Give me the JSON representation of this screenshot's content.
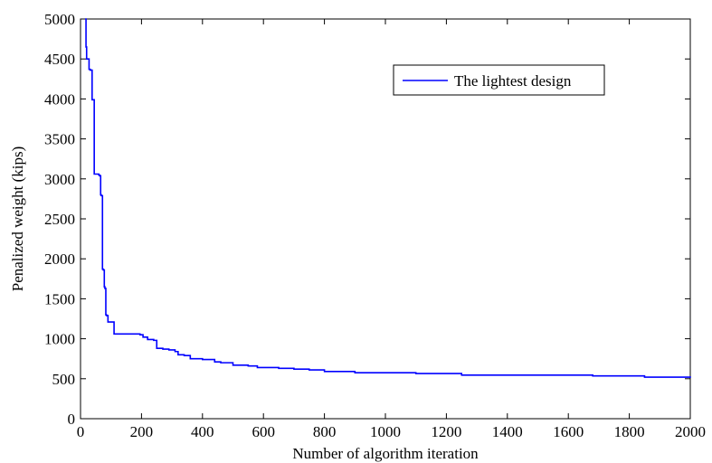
{
  "chart_data": {
    "type": "line",
    "xlabel": "Number of algorithm iteration",
    "ylabel": "Penalized weight (kips)",
    "xlim": [
      0,
      2000
    ],
    "ylim": [
      0,
      5000
    ],
    "xticks": [
      0,
      200,
      400,
      600,
      800,
      1000,
      1200,
      1400,
      1600,
      1800,
      2000
    ],
    "yticks": [
      0,
      500,
      1000,
      1500,
      2000,
      2500,
      3000,
      3500,
      4000,
      4500,
      5000
    ],
    "grid": false,
    "legend_position": "top-right",
    "series": [
      {
        "name": "The lightest design",
        "color": "#0000ff",
        "step": true,
        "x": [
          15,
          18,
          20,
          28,
          32,
          38,
          45,
          60,
          62,
          66,
          68,
          70,
          72,
          75,
          78,
          80,
          83,
          85,
          90,
          95,
          105,
          110,
          195,
          205,
          220,
          240,
          250,
          270,
          290,
          310,
          320,
          340,
          360,
          400,
          440,
          460,
          500,
          550,
          580,
          650,
          700,
          750,
          800,
          900,
          1100,
          1250,
          1680,
          1850,
          2000
        ],
        "y": [
          5000,
          4650,
          4500,
          4370,
          4360,
          3990,
          3060,
          3050,
          3040,
          2800,
          2790,
          2790,
          1870,
          1860,
          1650,
          1630,
          1300,
          1290,
          1210,
          1210,
          1210,
          1060,
          1050,
          1020,
          990,
          980,
          880,
          870,
          860,
          840,
          800,
          790,
          750,
          740,
          710,
          700,
          670,
          660,
          640,
          630,
          620,
          610,
          590,
          575,
          565,
          545,
          535,
          520,
          510
        ]
      }
    ]
  }
}
